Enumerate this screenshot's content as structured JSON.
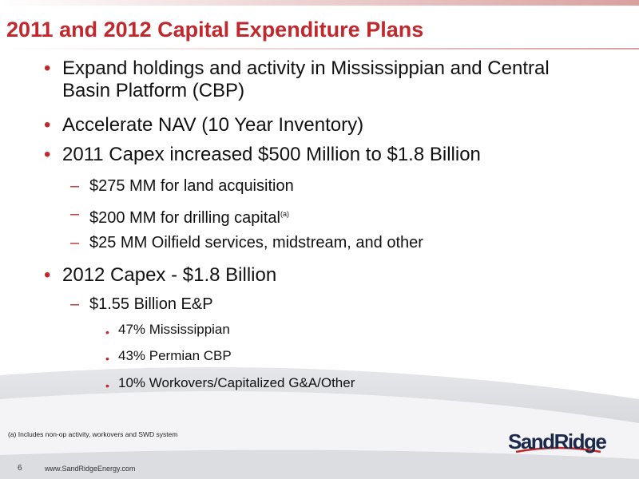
{
  "title": "2011 and 2012 Capital Expenditure Plans",
  "bullets": [
    {
      "text": "Expand holdings and activity in Mississippian and Central Basin Platform (CBP)"
    },
    {
      "text": "Accelerate NAV (10 Year Inventory)"
    },
    {
      "text": "2011 Capex increased $500 Million to $1.8 Billion",
      "items": [
        {
          "text": "$275 MM for land acquisition"
        },
        {
          "text": "$200 MM for drilling capital",
          "sup": "(a)"
        },
        {
          "text": "$25 MM Oilfield services, midstream, and other"
        }
      ]
    },
    {
      "text": "2012 Capex - $1.8 Billion",
      "items": [
        {
          "text": "$1.55 Billion E&P",
          "items": [
            {
              "text": "47% Mississippian"
            },
            {
              "text": "43% Permian CBP"
            },
            {
              "text": "10% Workovers/Capitalized G&A/Other"
            }
          ]
        }
      ]
    }
  ],
  "footnote": "(a)  Includes non-op activity, workovers and SWD system",
  "page_number": "6",
  "website": "www.SandRidgeEnergy.com",
  "logo": "SandRidge"
}
